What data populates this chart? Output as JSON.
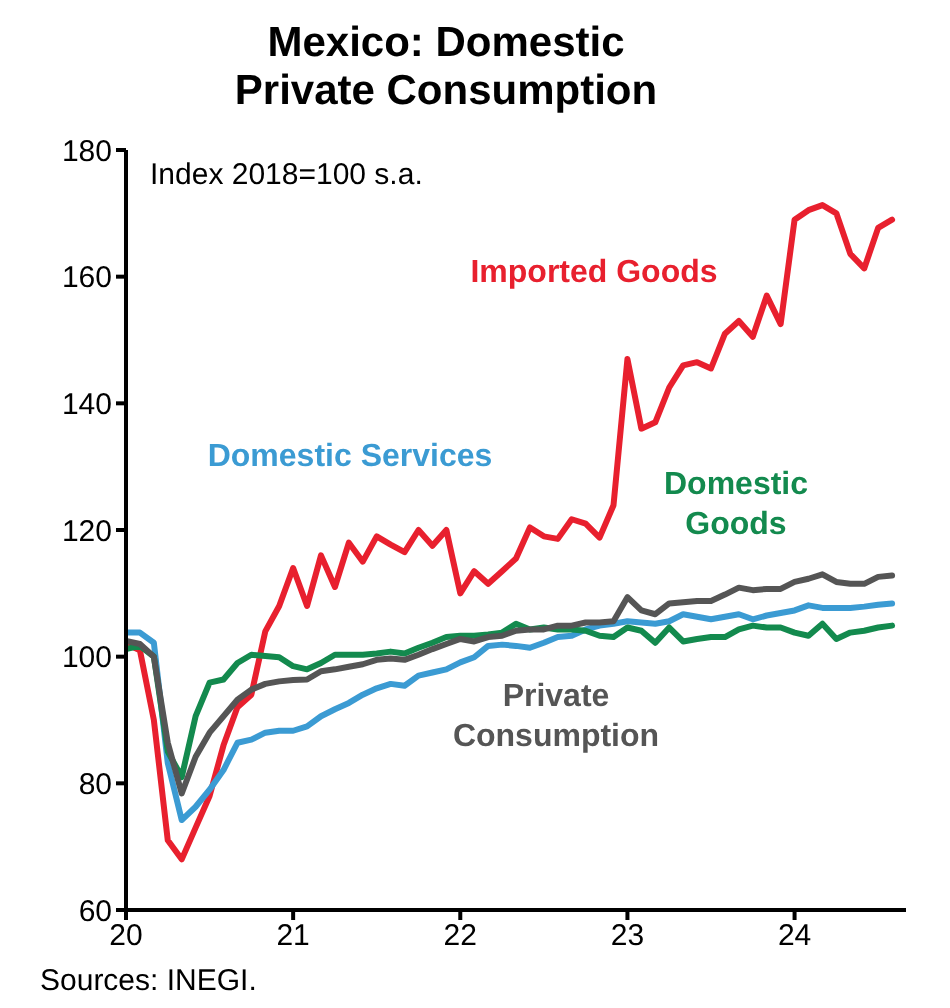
{
  "chart_data": {
    "type": "line",
    "title": "Mexico: Domestic Private Consumption",
    "ylabel": "Index 2018=100 s.a.",
    "annotations": [
      "Sources: INEGI."
    ],
    "x": [
      "2020-01",
      "2020-02",
      "2020-03",
      "2020-04",
      "2020-05",
      "2020-06",
      "2020-07",
      "2020-08",
      "2020-09",
      "2020-10",
      "2020-11",
      "2020-12",
      "2021-01",
      "2021-02",
      "2021-03",
      "2021-04",
      "2021-05",
      "2021-06",
      "2021-07",
      "2021-08",
      "2021-09",
      "2021-10",
      "2021-11",
      "2021-12",
      "2022-01",
      "2022-02",
      "2022-03",
      "2022-04",
      "2022-05",
      "2022-06",
      "2022-07",
      "2022-08",
      "2022-09",
      "2022-10",
      "2022-11",
      "2022-12",
      "2023-01",
      "2023-02",
      "2023-03",
      "2023-04",
      "2023-05",
      "2023-06",
      "2023-07",
      "2023-08",
      "2023-09",
      "2023-10",
      "2023-11",
      "2023-12",
      "2024-01",
      "2024-02",
      "2024-03",
      "2024-04",
      "2024-05",
      "2024-06",
      "2024-07",
      "2024-08"
    ],
    "series": [
      {
        "name": "Imported Goods",
        "color": "#e8202e",
        "values": [
          102,
          101,
          90,
          71,
          68,
          73,
          78,
          86,
          92,
          94,
          104,
          108,
          114,
          108,
          116,
          111,
          118,
          115,
          119,
          117.7,
          116.5,
          120,
          117.5,
          120,
          110,
          113.5,
          111.5,
          113.5,
          115.5,
          120.4,
          119,
          118.6,
          121.7,
          121,
          118.8,
          123.9,
          147,
          136,
          137,
          142.5,
          146,
          146.5,
          145.5,
          151,
          153,
          150.5,
          157,
          152.5,
          169,
          170.5,
          171.3,
          170,
          163.6,
          161.3,
          167.7,
          169
        ]
      },
      {
        "name": "Domestic Services",
        "color": "#3b9bd3",
        "values": [
          103.8,
          103.8,
          102.2,
          83.2,
          74.2,
          76.3,
          79,
          82.1,
          86.4,
          86.9,
          88,
          88.3,
          88.3,
          89,
          90.6,
          91.7,
          92.7,
          94,
          95,
          95.7,
          95.4,
          97,
          97.5,
          98,
          99.1,
          99.9,
          101.7,
          101.9,
          101.7,
          101.4,
          102.2,
          103.1,
          103.3,
          104.3,
          104.9,
          105.2,
          105.6,
          105.4,
          105.2,
          105.6,
          106.7,
          106.3,
          105.9,
          106.3,
          106.7,
          105.9,
          106.5,
          106.9,
          107.3,
          108.1,
          107.7,
          107.7,
          107.7,
          107.9,
          108.2,
          108.4
        ]
      },
      {
        "name": "Domestic Goods",
        "color": "#138a4e",
        "values": [
          101.2,
          101.7,
          100,
          85,
          81,
          90.6,
          95.9,
          96.4,
          99,
          100.3,
          100.1,
          99.9,
          98.5,
          98,
          99,
          100.3,
          100.3,
          100.3,
          100.5,
          100.8,
          100.5,
          101.4,
          102.2,
          103.1,
          103.3,
          103.3,
          103.5,
          103.8,
          105.2,
          104.3,
          104.6,
          104.3,
          104.3,
          104.1,
          103.3,
          103.1,
          104.6,
          104.1,
          102.2,
          104.6,
          102.4,
          102.8,
          103.1,
          103.1,
          104.3,
          104.9,
          104.6,
          104.6,
          103.8,
          103.3,
          105.2,
          102.8,
          103.8,
          104.1,
          104.6,
          104.9
        ]
      },
      {
        "name": "Private Consumption",
        "color": "#555555",
        "values": [
          102.5,
          102,
          100,
          86.4,
          78.4,
          84.2,
          88,
          90.6,
          93.2,
          94.8,
          95.7,
          96.1,
          96.3,
          96.4,
          97.7,
          98,
          98.4,
          98.8,
          99.5,
          99.7,
          99.5,
          100.3,
          101.2,
          102,
          102.8,
          102.4,
          103.1,
          103.3,
          104.1,
          104.3,
          104.3,
          104.9,
          104.9,
          105.4,
          105.4,
          105.6,
          109.4,
          107.3,
          106.7,
          108.4,
          108.6,
          108.8,
          108.8,
          109.8,
          110.9,
          110.5,
          110.7,
          110.7,
          111.8,
          112.3,
          113,
          111.8,
          111.5,
          111.5,
          112.6,
          112.8
        ]
      }
    ],
    "xlim": [
      "2020-01",
      "2024-09"
    ],
    "xticks": [
      {
        "value": "2020",
        "label": "20"
      },
      {
        "value": "2021",
        "label": "21"
      },
      {
        "value": "2022",
        "label": "22"
      },
      {
        "value": "2023",
        "label": "23"
      },
      {
        "value": "2024",
        "label": "24"
      }
    ],
    "ylim": [
      60,
      180
    ],
    "yticks": [
      60,
      80,
      100,
      120,
      140,
      160,
      180
    ],
    "grid": false,
    "legend": false,
    "marker": "none",
    "line_style": "solid"
  }
}
